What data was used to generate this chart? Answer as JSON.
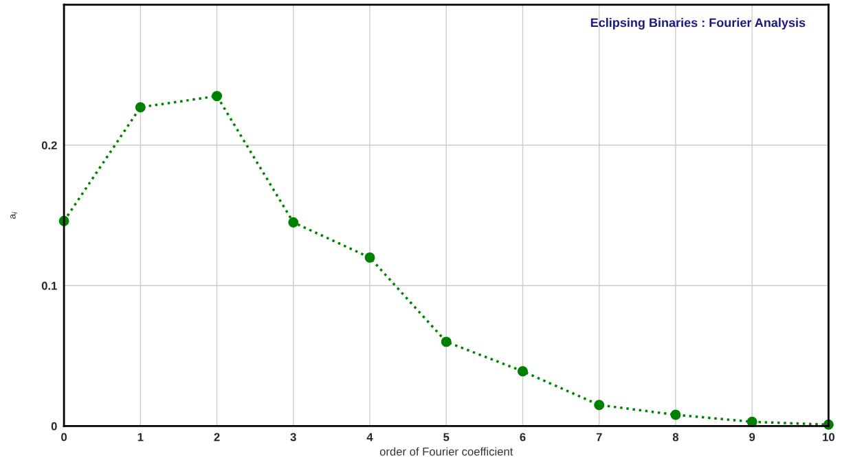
{
  "chart_data": {
    "type": "line",
    "title": "Eclipsing Binaries : Fourier Analysis",
    "xlabel": "order of Fourier coefficient",
    "ylabel": "a$_{i}$",
    "x": [
      0,
      1,
      2,
      3,
      4,
      5,
      6,
      7,
      8,
      9,
      10
    ],
    "series": [
      {
        "color": "#008000",
        "values": [
          0.146,
          0.227,
          0.235,
          0.145,
          0.12,
          0.06,
          0.039,
          0.015,
          0.008,
          0.003,
          0.001
        ]
      }
    ],
    "xlim": [
      0,
      10
    ],
    "ylim": [
      0,
      0.3
    ],
    "xticks": [
      0,
      1,
      2,
      3,
      4,
      5,
      6,
      7,
      8,
      9,
      10
    ],
    "yticks": [
      0,
      0.1,
      0.2
    ],
    "grid": true,
    "marker": "circle",
    "line_style": "dotted",
    "legend": false
  }
}
